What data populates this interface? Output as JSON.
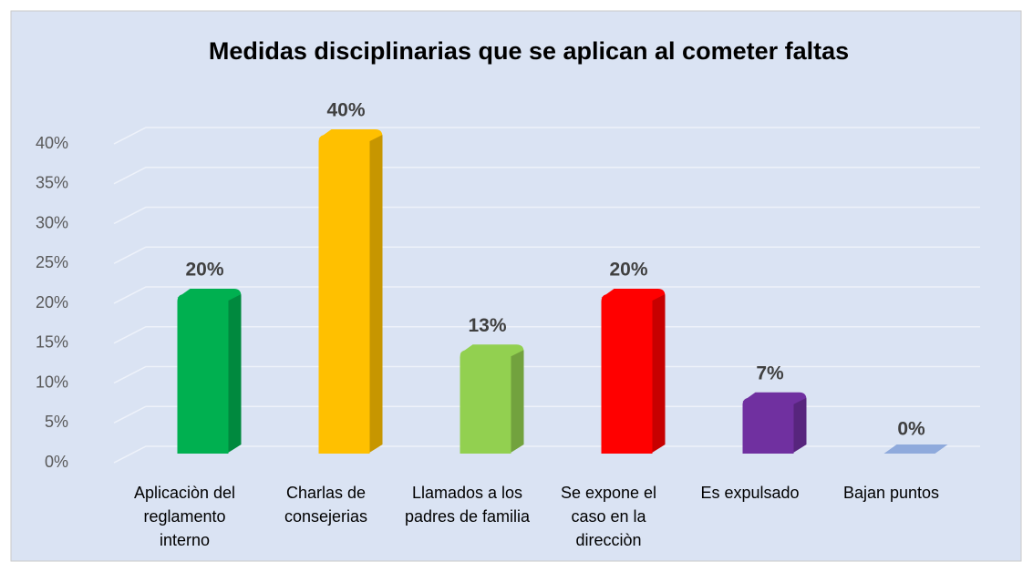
{
  "chart_data": {
    "type": "bar",
    "title": "Medidas disciplinarias que se aplican al cometer faltas",
    "categories": [
      "Aplicaciòn del reglamento interno",
      "Charlas de consejerias",
      "Llamados a los padres de familia",
      "Se expone el caso en la direcciòn",
      "Es expulsado",
      "Bajan puntos"
    ],
    "values": [
      20,
      40,
      13,
      20,
      7,
      0
    ],
    "value_labels": [
      "20%",
      "40%",
      "13%",
      "20%",
      "7%",
      "0%"
    ],
    "colors": [
      "#00b050",
      "#ffc000",
      "#92d050",
      "#ff0000",
      "#7030a0",
      "#8faadc"
    ],
    "ylim": [
      0,
      40
    ],
    "yticks": [
      {
        "value": 0,
        "label": "0%"
      },
      {
        "value": 5,
        "label": "5%"
      },
      {
        "value": 10,
        "label": "10%"
      },
      {
        "value": 15,
        "label": "15%"
      },
      {
        "value": 20,
        "label": "20%"
      },
      {
        "value": 25,
        "label": "25%"
      },
      {
        "value": 30,
        "label": "30%"
      },
      {
        "value": 35,
        "label": "35%"
      },
      {
        "value": 40,
        "label": "40%"
      }
    ],
    "grid": true
  }
}
